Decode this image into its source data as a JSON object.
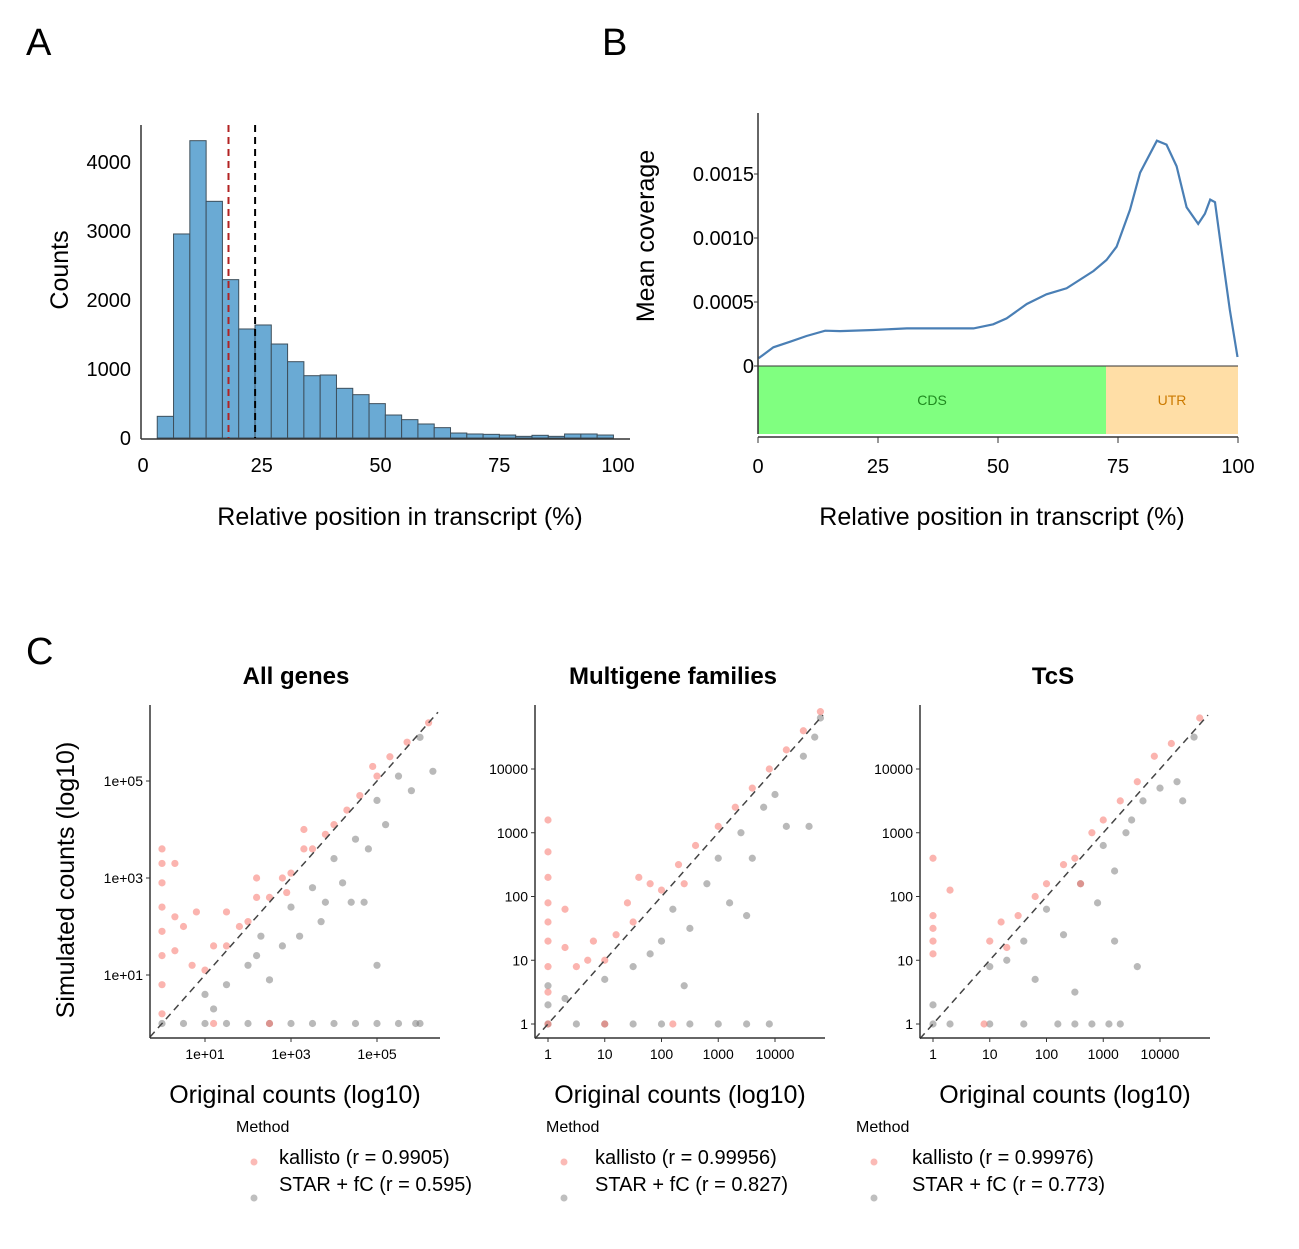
{
  "panels": {
    "a": "A",
    "b": "B",
    "c": "C"
  },
  "chart_data": [
    {
      "type": "bar",
      "panel": "A",
      "xlabel": "Relative position in transcript (%)",
      "ylabel": "Counts",
      "xlim": [
        0,
        100
      ],
      "ylim": [
        0,
        4500
      ],
      "xticks": [
        0,
        25,
        50,
        75,
        100
      ],
      "yticks": [
        0,
        1000,
        2000,
        3000,
        4000
      ],
      "bin_start": 3.0,
      "bin_width": 3.43,
      "values": [
        314,
        2957,
        4309,
        3430,
        2295,
        1580,
        1638,
        1362,
        1106,
        903,
        913,
        720,
        628,
        498,
        333,
        266,
        203,
        150,
        72,
        58,
        53,
        43,
        24,
        39,
        24,
        58,
        58,
        43
      ],
      "vlines": [
        {
          "x": 18.0,
          "color": "#b22222"
        },
        {
          "x": 23.6,
          "color": "#000000"
        }
      ],
      "bar_color": "#6aaad4",
      "grid": false
    },
    {
      "type": "line",
      "panel": "B",
      "xlabel": "Relative position in transcript (%)",
      "ylabel": "Mean coverage",
      "xlim": [
        0,
        100
      ],
      "ylim": [
        0,
        0.0019
      ],
      "xticks": [
        0,
        25,
        50,
        75,
        100
      ],
      "yticks": [
        "0",
        "0.0005",
        "0.0010",
        "0.0015"
      ],
      "ytick_values": [
        0,
        0.0005,
        0.001,
        0.0015
      ],
      "x": [
        0.1,
        3.2,
        6.7,
        10.1,
        14.0,
        17.1,
        24.0,
        31.0,
        37.9,
        44.9,
        49.0,
        51.8,
        56.0,
        60.1,
        64.3,
        69.9,
        72.6,
        74.7,
        77.5,
        79.6,
        83.1,
        85.1,
        87.2,
        89.3,
        91.7,
        93.1,
        94.2,
        95.2,
        96.3,
        98.3,
        99.9
      ],
      "y": [
        6e-05,
        0.000146,
        0.00019,
        0.000234,
        0.000276,
        0.000273,
        0.000281,
        0.000294,
        0.000294,
        0.000294,
        0.000326,
        0.000372,
        0.000484,
        0.00056,
        0.000607,
        0.000742,
        0.000828,
        0.000932,
        0.00122,
        0.00151,
        0.00176,
        0.00173,
        0.00156,
        0.00124,
        0.00111,
        0.00119,
        0.0013,
        0.00128,
        0.00098,
        0.00044,
        7e-05
      ],
      "line_color": "#4a7fb5",
      "regions": [
        {
          "label": "CDS",
          "from": 0,
          "to": 72.5,
          "fill": "#80ff80",
          "text_color": "#1f8a1f"
        },
        {
          "label": "UTR",
          "from": 72.5,
          "to": 100,
          "fill": "#ffdea6",
          "text_color": "#cc7a00"
        }
      ]
    },
    {
      "type": "scatter",
      "panel": "C",
      "title": "All genes",
      "xlabel": "Original counts (log10)",
      "ylabel": "Simulated counts (log10)",
      "scale": "log10",
      "xticks": [
        "1e+01",
        "1e+03",
        "1e+05"
      ],
      "xtick_values": [
        1,
        3,
        5
      ],
      "yticks": [
        "1e+01",
        "1e+03",
        "1e+05"
      ],
      "ytick_values": [
        1,
        3,
        5
      ],
      "legend_title": "Method",
      "series": [
        {
          "name": "kallisto (r = 0.9905)",
          "color": "#f8766d",
          "points_log10": [
            [
              0,
              0.2
            ],
            [
              0,
              0.8
            ],
            [
              0,
              1.4
            ],
            [
              0,
              1.9
            ],
            [
              0,
              2.4
            ],
            [
              0,
              2.9
            ],
            [
              0,
              3.3
            ],
            [
              0,
              3.6
            ],
            [
              0.3,
              3.3
            ],
            [
              0.3,
              2.2
            ],
            [
              0.3,
              1.5
            ],
            [
              0.5,
              2.0
            ],
            [
              0.7,
              1.2
            ],
            [
              0.8,
              2.3
            ],
            [
              1,
              1.1
            ],
            [
              1.2,
              1.6
            ],
            [
              1.5,
              1.6
            ],
            [
              1.5,
              2.3
            ],
            [
              1.8,
              2.0
            ],
            [
              2,
              2.1
            ],
            [
              2.2,
              2.6
            ],
            [
              2.5,
              2.6
            ],
            [
              2.8,
              3.0
            ],
            [
              3,
              3.1
            ],
            [
              3.3,
              3.6
            ],
            [
              3.5,
              3.6
            ],
            [
              3.8,
              3.9
            ],
            [
              4,
              4.1
            ],
            [
              4.3,
              4.4
            ],
            [
              4.6,
              4.7
            ],
            [
              5,
              5.1
            ],
            [
              5.3,
              5.5
            ],
            [
              5.7,
              5.8
            ],
            [
              6.2,
              6.2
            ],
            [
              2.9,
              2.7
            ],
            [
              1.2,
              0
            ],
            [
              2.5,
              0
            ],
            [
              3.3,
              4.0
            ],
            [
              2.2,
              3.0
            ],
            [
              4.9,
              5.3
            ]
          ]
        },
        {
          "name": "STAR + fC (r = 0.595)",
          "color": "#808080",
          "points_log10": [
            [
              0,
              0
            ],
            [
              0.5,
              0
            ],
            [
              1,
              0
            ],
            [
              1.5,
              0
            ],
            [
              2,
              0
            ],
            [
              2.5,
              0
            ],
            [
              3,
              0
            ],
            [
              3.5,
              0
            ],
            [
              4,
              0
            ],
            [
              4.5,
              0
            ],
            [
              5,
              0
            ],
            [
              5.5,
              0
            ],
            [
              6,
              0
            ],
            [
              1,
              0.6
            ],
            [
              1.5,
              0.8
            ],
            [
              2,
              1.2
            ],
            [
              2.3,
              1.8
            ],
            [
              2.5,
              0.9
            ],
            [
              2.8,
              1.6
            ],
            [
              3,
              2.4
            ],
            [
              3.2,
              1.8
            ],
            [
              3.5,
              2.8
            ],
            [
              3.7,
              2.1
            ],
            [
              4,
              3.4
            ],
            [
              4.2,
              2.9
            ],
            [
              4.5,
              3.8
            ],
            [
              4.7,
              2.5
            ],
            [
              4.8,
              3.6
            ],
            [
              5,
              4.6
            ],
            [
              5.2,
              4.1
            ],
            [
              5.5,
              5.1
            ],
            [
              5.8,
              4.8
            ],
            [
              6,
              5.9
            ],
            [
              6.3,
              5.2
            ],
            [
              4.4,
              2.5
            ],
            [
              5,
              1.2
            ],
            [
              5.9,
              0
            ],
            [
              3.8,
              2.5
            ],
            [
              2.2,
              1.4
            ],
            [
              1.2,
              0.3
            ]
          ]
        }
      ]
    },
    {
      "type": "scatter",
      "panel": "C",
      "title": "Multigene families",
      "xlabel": "Original counts (log10)",
      "scale": "log10",
      "xticks": [
        "1",
        "10",
        "100",
        "1000",
        "10000"
      ],
      "xtick_values": [
        0,
        1,
        2,
        3,
        4
      ],
      "yticks": [
        "1",
        "10",
        "100",
        "1000",
        "10000"
      ],
      "ytick_values": [
        0,
        1,
        2,
        3,
        4
      ],
      "legend_title": "Method",
      "series": [
        {
          "name": "kallisto (r = 0.99956)",
          "color": "#f8766d",
          "points_log10": [
            [
              0,
              0
            ],
            [
              0,
              0.5
            ],
            [
              0,
              0.9
            ],
            [
              0,
              1.3
            ],
            [
              0,
              1.6
            ],
            [
              0,
              1.9
            ],
            [
              0,
              2.3
            ],
            [
              0,
              2.7
            ],
            [
              0,
              3.2
            ],
            [
              0.3,
              1.2
            ],
            [
              0.3,
              1.8
            ],
            [
              0.5,
              0.9
            ],
            [
              0.7,
              1
            ],
            [
              0.8,
              1.3
            ],
            [
              1,
              1
            ],
            [
              1.2,
              1.4
            ],
            [
              1.5,
              1.6
            ],
            [
              1.8,
              2.2
            ],
            [
              2,
              2.1
            ],
            [
              2.3,
              2.5
            ],
            [
              2.6,
              2.8
            ],
            [
              3,
              3.1
            ],
            [
              3.3,
              3.4
            ],
            [
              3.6,
              3.7
            ],
            [
              3.9,
              4
            ],
            [
              4.2,
              4.3
            ],
            [
              4.5,
              4.6
            ],
            [
              4.8,
              4.9
            ],
            [
              1.4,
              1.9
            ],
            [
              2.4,
              2.2
            ],
            [
              1,
              0
            ],
            [
              2.2,
              0
            ],
            [
              1.6,
              2.3
            ]
          ]
        },
        {
          "name": "STAR + fC (r = 0.827)",
          "color": "#808080",
          "points_log10": [
            [
              0,
              0
            ],
            [
              0.5,
              0
            ],
            [
              1,
              0
            ],
            [
              1.5,
              0
            ],
            [
              2,
              0
            ],
            [
              2.5,
              0
            ],
            [
              3,
              0
            ],
            [
              3.5,
              0
            ],
            [
              3.9,
              0
            ],
            [
              0,
              0.3
            ],
            [
              0,
              0.6
            ],
            [
              0.3,
              0.4
            ],
            [
              1,
              0.7
            ],
            [
              1.5,
              0.9
            ],
            [
              2,
              1.3
            ],
            [
              2.2,
              1.8
            ],
            [
              2.5,
              1.5
            ],
            [
              2.8,
              2.2
            ],
            [
              3,
              2.6
            ],
            [
              3.2,
              1.9
            ],
            [
              3.4,
              3
            ],
            [
              3.6,
              2.6
            ],
            [
              3.8,
              3.4
            ],
            [
              4,
              3.6
            ],
            [
              4.2,
              3.1
            ],
            [
              4.5,
              4.2
            ],
            [
              4.7,
              4.5
            ],
            [
              4.8,
              4.8
            ],
            [
              4.6,
              3.1
            ],
            [
              2.4,
              0.6
            ],
            [
              3.5,
              1.7
            ],
            [
              1.8,
              1.1
            ]
          ]
        }
      ]
    },
    {
      "type": "scatter",
      "panel": "C",
      "title": "TcS",
      "xlabel": "Original counts (log10)",
      "scale": "log10",
      "xticks": [
        "1",
        "10",
        "100",
        "1000",
        "10000"
      ],
      "xtick_values": [
        0,
        1,
        2,
        3,
        4
      ],
      "yticks": [
        "1",
        "10",
        "100",
        "1000",
        "10000"
      ],
      "ytick_values": [
        0,
        1,
        2,
        3,
        4
      ],
      "legend_title": "Method",
      "series": [
        {
          "name": "kallisto (r = 0.99976)",
          "color": "#f8766d",
          "points_log10": [
            [
              0,
              1.1
            ],
            [
              0,
              1.3
            ],
            [
              0,
              1.5
            ],
            [
              0,
              1.7
            ],
            [
              0,
              2.6
            ],
            [
              0.3,
              2.1
            ],
            [
              1,
              1.3
            ],
            [
              1.2,
              1.6
            ],
            [
              1.5,
              1.7
            ],
            [
              1.8,
              2.0
            ],
            [
              2,
              2.2
            ],
            [
              2.3,
              2.5
            ],
            [
              2.5,
              2.6
            ],
            [
              2.8,
              3.0
            ],
            [
              3,
              3.2
            ],
            [
              3.3,
              3.5
            ],
            [
              3.6,
              3.8
            ],
            [
              3.9,
              4.2
            ],
            [
              4.2,
              4.4
            ],
            [
              4.7,
              4.8
            ],
            [
              1.3,
              1.2
            ],
            [
              0.9,
              0
            ],
            [
              2.6,
              2.2
            ]
          ]
        },
        {
          "name": "STAR + fC (r = 0.773)",
          "color": "#808080",
          "points_log10": [
            [
              0,
              0
            ],
            [
              0,
              0.3
            ],
            [
              0.3,
              0
            ],
            [
              1,
              0
            ],
            [
              1.6,
              0
            ],
            [
              2.2,
              0
            ],
            [
              2.5,
              0
            ],
            [
              2.8,
              0
            ],
            [
              3.1,
              0
            ],
            [
              3.3,
              0
            ],
            [
              1,
              0.9
            ],
            [
              1.3,
              1.0
            ],
            [
              1.6,
              1.3
            ],
            [
              1.8,
              0.7
            ],
            [
              2,
              1.8
            ],
            [
              2.3,
              1.4
            ],
            [
              2.6,
              2.2
            ],
            [
              2.9,
              1.9
            ],
            [
              3,
              2.8
            ],
            [
              3.2,
              2.4
            ],
            [
              3.4,
              3.0
            ],
            [
              3.5,
              3.2
            ],
            [
              3.7,
              3.5
            ],
            [
              4,
              3.7
            ],
            [
              4.3,
              3.8
            ],
            [
              4.6,
              4.5
            ],
            [
              3.2,
              1.3
            ],
            [
              4.4,
              3.5
            ],
            [
              2.5,
              0.5
            ],
            [
              3.6,
              0.9
            ]
          ]
        }
      ]
    }
  ]
}
